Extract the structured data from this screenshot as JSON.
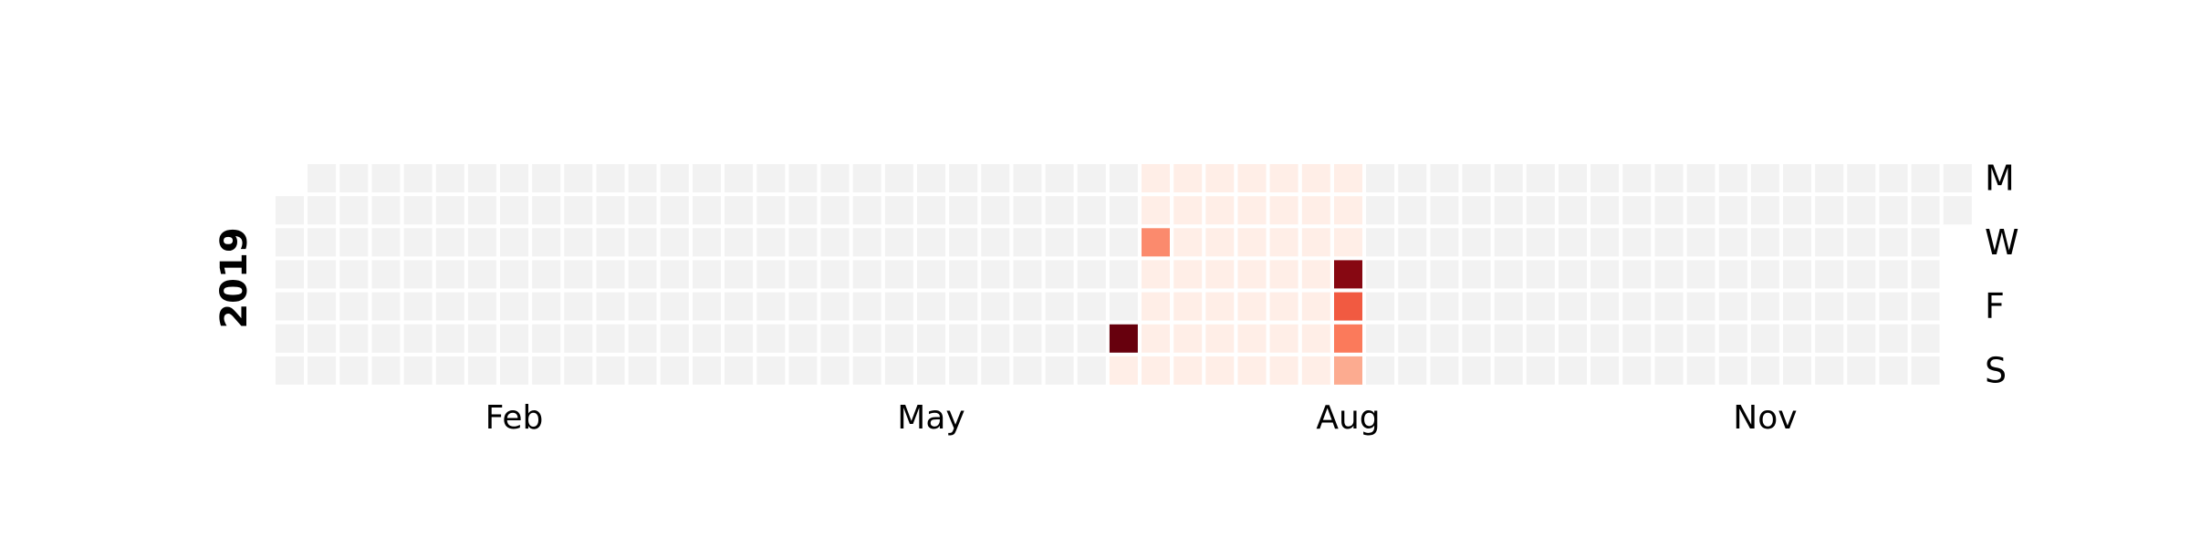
{
  "chart_data": {
    "type": "heatmap",
    "year_label": "2019",
    "month_labels": [
      {
        "label": "Feb",
        "week": 7
      },
      {
        "label": "May",
        "week": 20
      },
      {
        "label": "Aug",
        "week": 33
      },
      {
        "label": "Nov",
        "week": 46
      }
    ],
    "day_labels": [
      {
        "label": "M",
        "day": 0
      },
      {
        "label": "W",
        "day": 2
      },
      {
        "label": "F",
        "day": 4
      },
      {
        "label": "S",
        "day": 6
      }
    ],
    "empty_color": "#f2f2f2",
    "colormap": [
      "#fff5f0",
      "#fcbba1",
      "#fb6a4a",
      "#cb181d",
      "#67000d"
    ],
    "vmax": 1.0,
    "baseline": {
      "value": 0.03,
      "start": "2019-07-08",
      "end": "2019-08-25"
    },
    "values": [
      {
        "date": "2019-07-06",
        "value": 1.0
      },
      {
        "date": "2019-07-07",
        "value": 0.03
      },
      {
        "date": "2019-07-10",
        "value": 0.4
      },
      {
        "date": "2019-08-22",
        "value": 0.92
      },
      {
        "date": "2019-08-23",
        "value": 0.55
      },
      {
        "date": "2019-08-24",
        "value": 0.45
      },
      {
        "date": "2019-08-25",
        "value": 0.3
      }
    ]
  }
}
